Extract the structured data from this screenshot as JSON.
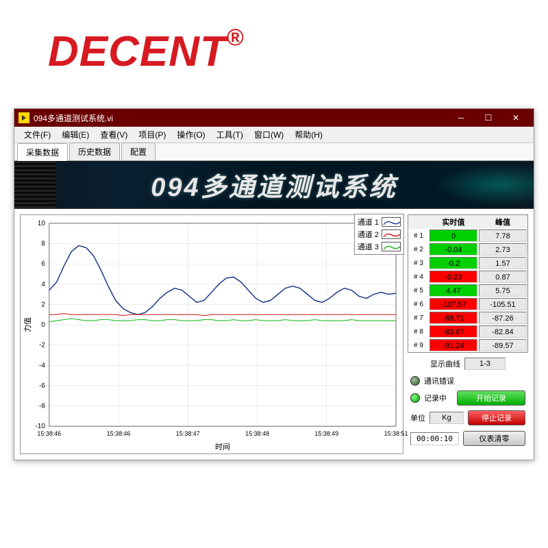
{
  "logo": {
    "text": "DECENT",
    "symbol": "®",
    "color": "#d71921"
  },
  "window": {
    "title": "094多通道测试系统.vi",
    "menubar": [
      "文件(F)",
      "编辑(E)",
      "查看(V)",
      "项目(P)",
      "操作(O)",
      "工具(T)",
      "窗口(W)",
      "帮助(H)"
    ],
    "tabs": [
      "采集数据",
      "历史数据",
      "配置"
    ],
    "active_tab": 0,
    "banner": {
      "num": "094",
      "text": "多通道测试系统"
    }
  },
  "chart": {
    "type": "line",
    "ylabel": "力值",
    "xlabel": "时间",
    "ylim": [
      -10,
      10
    ],
    "ytick_step": 2,
    "xticks": [
      "15:38:46",
      "15:38:46",
      "15:38:47",
      "15:38:48",
      "15:38:49",
      "15:38:51"
    ],
    "grid_color": "#d8d8d8",
    "background_color": "#ffffff",
    "legend": [
      {
        "label": "通道 1",
        "color": "#1a3a8a"
      },
      {
        "label": "通道 2",
        "color": "#d01010"
      },
      {
        "label": "通道 3",
        "color": "#10b010"
      }
    ],
    "series": [
      {
        "color": "#1a3a8a",
        "width": 1.5,
        "data": [
          3.4,
          4.2,
          5.8,
          7.2,
          7.8,
          7.6,
          6.8,
          5.4,
          3.8,
          2.4,
          1.6,
          1.2,
          1.0,
          1.2,
          1.8,
          2.6,
          3.2,
          3.6,
          3.4,
          2.8,
          2.2,
          2.4,
          3.2,
          4.0,
          4.6,
          4.7,
          4.2,
          3.4,
          2.6,
          2.2,
          2.4,
          3.0,
          3.6,
          3.8,
          3.6,
          3.0,
          2.4,
          2.2,
          2.6,
          3.2,
          3.6,
          3.4,
          2.8,
          2.6,
          3.0,
          3.2,
          3.0,
          3.1
        ]
      },
      {
        "color": "#d01010",
        "width": 1,
        "data": [
          1.0,
          1.0,
          1.1,
          1.0,
          1.0,
          1.0,
          1.0,
          1.0,
          1.0,
          1.0,
          0.9,
          1.0,
          1.0,
          1.0,
          1.0,
          1.0,
          1.0,
          1.0,
          1.0,
          1.0,
          1.0,
          0.9,
          1.0,
          1.0,
          1.0,
          1.0,
          1.0,
          1.0,
          1.0,
          1.0,
          1.0,
          1.0,
          1.0,
          1.0,
          1.0,
          1.0,
          1.0,
          1.0,
          1.0,
          1.0,
          1.0,
          1.0,
          1.0,
          1.0,
          1.0,
          1.0,
          1.0,
          1.0
        ]
      },
      {
        "color": "#10b010",
        "width": 1,
        "data": [
          0.3,
          0.4,
          0.5,
          0.6,
          0.5,
          0.4,
          0.4,
          0.5,
          0.5,
          0.4,
          0.4,
          0.4,
          0.5,
          0.5,
          0.4,
          0.4,
          0.5,
          0.5,
          0.4,
          0.4,
          0.4,
          0.5,
          0.5,
          0.4,
          0.4,
          0.5,
          0.4,
          0.4,
          0.5,
          0.4,
          0.4,
          0.4,
          0.5,
          0.4,
          0.4,
          0.4,
          0.5,
          0.4,
          0.4,
          0.4,
          0.4,
          0.5,
          0.4,
          0.4,
          0.4,
          0.4,
          0.4,
          0.4
        ]
      }
    ]
  },
  "readings": {
    "header_rt": "实时值",
    "header_peak": "峰值",
    "rows": [
      {
        "label": "# 1",
        "rt": "0",
        "rt_color": "green",
        "peak": "7.78"
      },
      {
        "label": "# 2",
        "rt": "-0.04",
        "rt_color": "green",
        "peak": "2.73"
      },
      {
        "label": "# 3",
        "rt": "-0.2",
        "rt_color": "green",
        "peak": "1.57"
      },
      {
        "label": "# 4",
        "rt": "-0.23",
        "rt_color": "red",
        "peak": "0.87"
      },
      {
        "label": "# 5",
        "rt": "4.47",
        "rt_color": "green",
        "peak": "5.75"
      },
      {
        "label": "# 6",
        "rt": "-107.57",
        "rt_color": "red",
        "peak": "-105.51"
      },
      {
        "label": "# 7",
        "rt": "-88.71",
        "rt_color": "red",
        "peak": "-87.26"
      },
      {
        "label": "# 8",
        "rt": "-83.87",
        "rt_color": "red",
        "peak": "-82.84"
      },
      {
        "label": "# 9",
        "rt": "-91.24",
        "rt_color": "red",
        "peak": "-89.57"
      }
    ]
  },
  "controls": {
    "curve_label": "显示曲线",
    "curve_value": "1-3",
    "comm_error": "通讯错误",
    "recording": "记录中",
    "start_record": "开始记录",
    "stop_record": "停止记录",
    "unit_label": "单位",
    "unit_value": "Kg",
    "timer": "00:00:10",
    "zero_button": "仪表清零"
  }
}
